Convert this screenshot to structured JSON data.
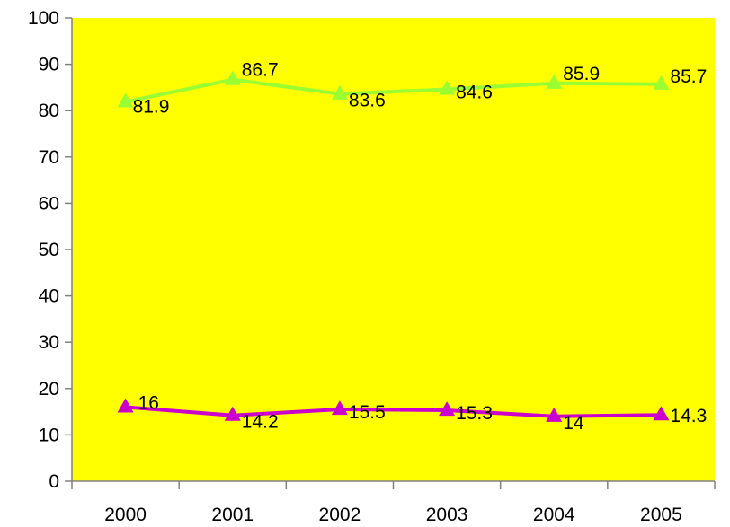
{
  "chart_data": {
    "type": "line",
    "title": "",
    "xlabel": "",
    "ylabel": "",
    "categories": [
      "2000",
      "2001",
      "2002",
      "2003",
      "2004",
      "2005"
    ],
    "ylim": [
      0,
      100
    ],
    "yticks": [
      "0",
      "10",
      "20",
      "30",
      "40",
      "50",
      "60",
      "70",
      "80",
      "90",
      "100"
    ],
    "grid": false,
    "legend": "none",
    "plot_background": "#FFFF00",
    "series": [
      {
        "values": [
          81.9,
          86.7,
          83.6,
          84.6,
          85.9,
          85.7
        ],
        "labels": [
          "81.9",
          "86.7",
          "83.6",
          "84.6",
          "85.9",
          "85.7"
        ],
        "color": "#99FF33",
        "marker": "triangle"
      },
      {
        "values": [
          16,
          14.2,
          15.5,
          15.3,
          14,
          14.3
        ],
        "labels": [
          "16",
          "14.2",
          "15.5",
          "15.3",
          "14",
          "14.3"
        ],
        "color": "#CC00CC",
        "marker": "triangle"
      }
    ]
  }
}
